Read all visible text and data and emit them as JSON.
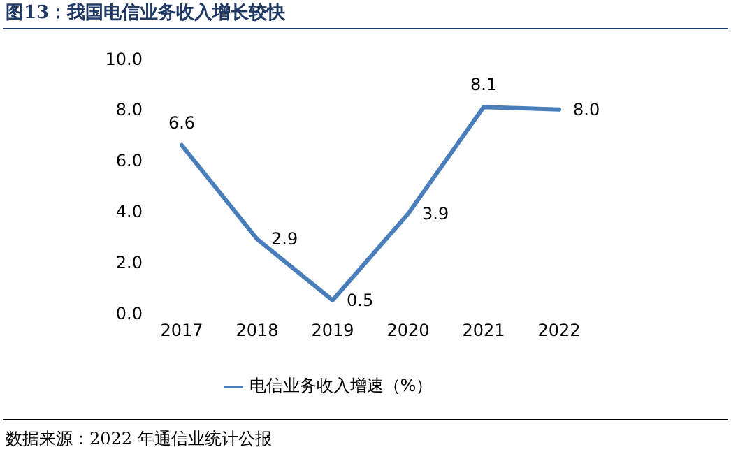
{
  "chart_data": {
    "type": "line",
    "title": "图13：我国电信业务收入增长较快",
    "categories": [
      "2017",
      "2018",
      "2019",
      "2020",
      "2021",
      "2022"
    ],
    "series": [
      {
        "name": "电信业务收入增速（%）",
        "color": "#4a7ebb",
        "values": [
          6.6,
          2.9,
          0.5,
          3.9,
          8.1,
          8.0
        ],
        "value_labels": [
          "6.6",
          "2.9",
          "0.5",
          "3.9",
          "8.1",
          "8.0"
        ]
      }
    ],
    "ylim": [
      0,
      10
    ],
    "yticks": [
      {
        "value": 0,
        "label": "0.0"
      },
      {
        "value": 2,
        "label": "2.0"
      },
      {
        "value": 4,
        "label": "4.0"
      },
      {
        "value": 6,
        "label": "6.0"
      },
      {
        "value": 8,
        "label": "8.0"
      },
      {
        "value": 10,
        "label": "10.0"
      }
    ],
    "grid": false,
    "legend": "bottom",
    "marker": "none",
    "line_style": "solid",
    "annotations": [
      "数据来源：2022 年通信业统计公报"
    ]
  }
}
